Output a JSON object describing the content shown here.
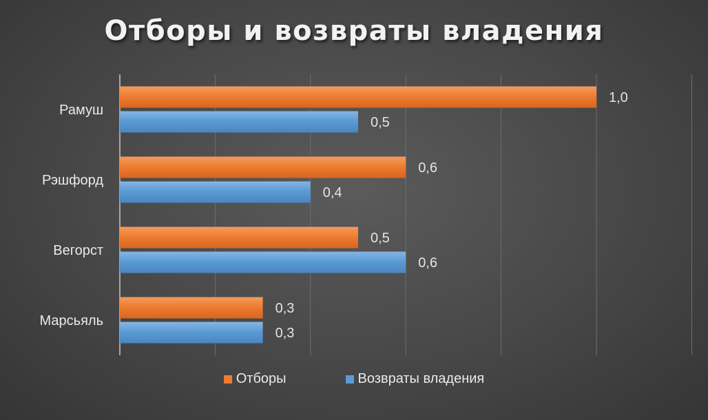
{
  "chart_data": {
    "type": "bar",
    "orientation": "horizontal",
    "title": "Отборы и возвраты владения",
    "categories": [
      "Рамуш",
      "Рэшфорд",
      "Вегорст",
      "Марсьяль"
    ],
    "series": [
      {
        "name": "Отборы",
        "color": "#ed7d31",
        "values": [
          1.0,
          0.6,
          0.5,
          0.3
        ],
        "labels": [
          "1,0",
          "0,6",
          "0,5",
          "0,3"
        ]
      },
      {
        "name": "Возвраты владения",
        "color": "#5b9bd5",
        "values": [
          0.5,
          0.4,
          0.6,
          0.3
        ],
        "labels": [
          "0,5",
          "0,4",
          "0,6",
          "0,3"
        ]
      }
    ],
    "xlim": [
      0,
      1.2
    ],
    "x_gridline_step": 0.2,
    "x_tick_labels_shown": false,
    "grid": "vertical",
    "legend_position": "bottom",
    "xlabel": "",
    "ylabel": ""
  }
}
